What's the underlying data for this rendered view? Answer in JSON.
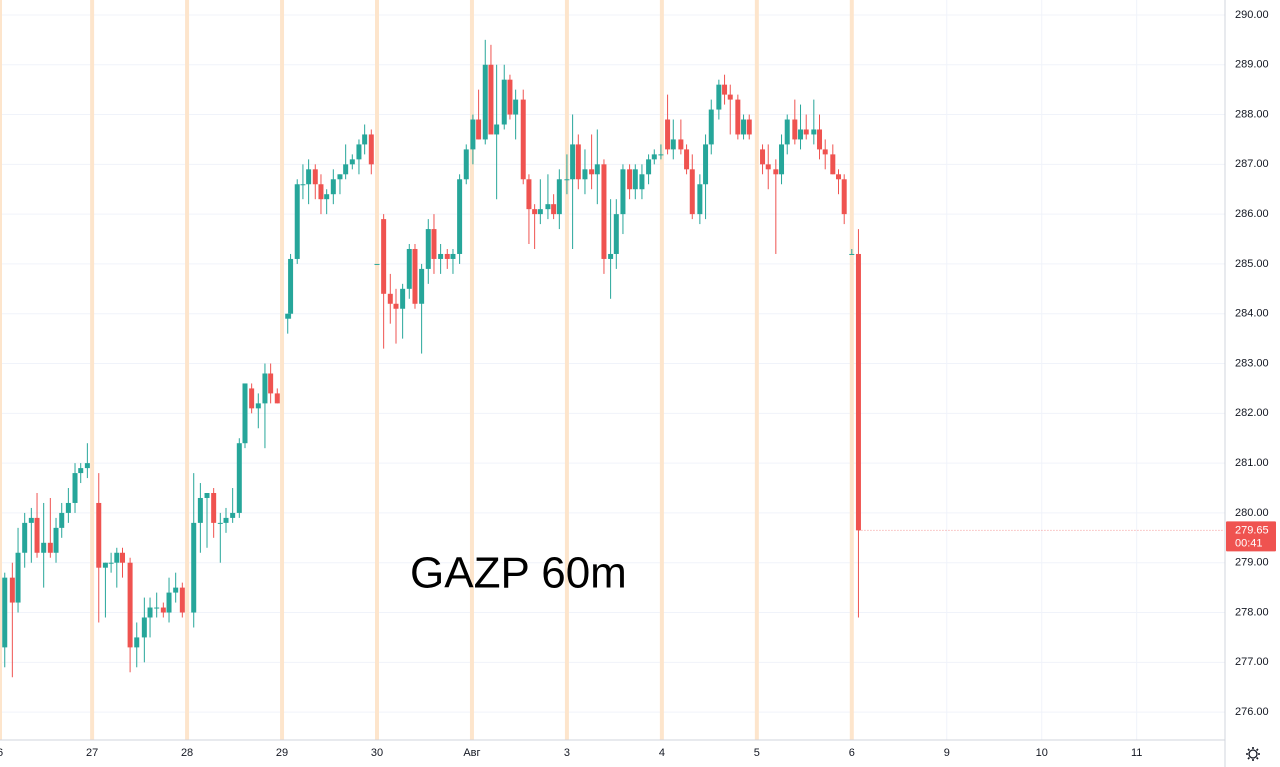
{
  "chart_data": {
    "type": "candlestick",
    "watermark": "GAZP 60m",
    "countdown": "00:41",
    "up_color": "#26a69a",
    "down_color": "#ef5350",
    "xlim": [
      0,
      12.9
    ],
    "xticks": [
      {
        "value": 0,
        "label": "6"
      },
      {
        "value": 0.97,
        "label": "27"
      },
      {
        "value": 1.97,
        "label": "28"
      },
      {
        "value": 2.97,
        "label": "29"
      },
      {
        "value": 3.97,
        "label": "30"
      },
      {
        "value": 4.97,
        "label": "Авг"
      },
      {
        "value": 5.97,
        "label": "3"
      },
      {
        "value": 6.97,
        "label": "4"
      },
      {
        "value": 7.97,
        "label": "5"
      },
      {
        "value": 8.97,
        "label": "6"
      },
      {
        "value": 9.97,
        "label": "9"
      },
      {
        "value": 10.97,
        "label": "10"
      },
      {
        "value": 11.97,
        "label": "11"
      }
    ],
    "ylim": [
      275.44,
      290.3
    ],
    "yticks": [
      {
        "value": 276,
        "label": "276.00"
      },
      {
        "value": 277,
        "label": "277.00"
      },
      {
        "value": 278,
        "label": "278.00"
      },
      {
        "value": 279,
        "label": "279.00"
      },
      {
        "value": 280,
        "label": "280.00"
      },
      {
        "value": 281,
        "label": "281.00"
      },
      {
        "value": 282,
        "label": "282.00"
      },
      {
        "value": 283,
        "label": "283.00"
      },
      {
        "value": 284,
        "label": "284.00"
      },
      {
        "value": 285,
        "label": "285.00"
      },
      {
        "value": 286,
        "label": "286.00"
      },
      {
        "value": 287,
        "label": "287.00"
      },
      {
        "value": 288,
        "label": "288.00"
      },
      {
        "value": 289,
        "label": "289.00"
      },
      {
        "value": 290,
        "label": "290.00"
      }
    ],
    "grid": true,
    "x": [
      0.05,
      0.13,
      0.19,
      0.26,
      0.33,
      0.39,
      0.46,
      0.53,
      0.59,
      0.65,
      0.72,
      0.79,
      0.85,
      0.92,
      1.04,
      1.11,
      1.17,
      1.23,
      1.29,
      1.37,
      1.44,
      1.52,
      1.58,
      1.65,
      1.72,
      1.78,
      1.85,
      1.92,
      2.04,
      2.11,
      2.18,
      2.25,
      2.32,
      2.38,
      2.45,
      2.52,
      2.58,
      2.65,
      2.72,
      2.79,
      2.85,
      2.92,
      3.03,
      3.06,
      3.13,
      3.19,
      3.25,
      3.32,
      3.38,
      3.44,
      3.51,
      3.58,
      3.64,
      3.71,
      3.78,
      3.84,
      3.91,
      3.97,
      4.04,
      4.11,
      4.17,
      4.24,
      4.31,
      4.37,
      4.44,
      4.51,
      4.57,
      4.64,
      4.71,
      4.77,
      4.84,
      4.91,
      4.98,
      5.04,
      5.11,
      5.17,
      5.23,
      5.31,
      5.37,
      5.43,
      5.51,
      5.57,
      5.63,
      5.69,
      5.77,
      5.83,
      5.89,
      5.97,
      6.03,
      6.09,
      6.16,
      6.23,
      6.29,
      6.36,
      6.43,
      6.49,
      6.56,
      6.63,
      6.69,
      6.76,
      6.83,
      6.89,
      6.96,
      7.03,
      7.09,
      7.17,
      7.23,
      7.29,
      7.37,
      7.43,
      7.49,
      7.57,
      7.63,
      7.69,
      7.77,
      7.83,
      7.89,
      8.03,
      8.09,
      8.17,
      8.23,
      8.29,
      8.37,
      8.43,
      8.49,
      8.57,
      8.63,
      8.69,
      8.77,
      8.83,
      8.89,
      8.97,
      9.04
    ],
    "open": [
      277.3,
      278.7,
      278.2,
      279.2,
      279.8,
      279.9,
      279.2,
      279.4,
      279.2,
      279.7,
      280.0,
      280.2,
      280.8,
      280.9,
      280.2,
      278.9,
      279.0,
      279.0,
      279.2,
      279.0,
      277.3,
      277.5,
      277.9,
      278.1,
      278.1,
      278.0,
      278.4,
      278.5,
      278.0,
      279.8,
      280.3,
      280.4,
      279.8,
      279.8,
      279.9,
      280.0,
      281.4,
      282.5,
      282.1,
      282.2,
      282.8,
      282.4,
      283.9,
      284.0,
      285.1,
      286.6,
      286.6,
      286.9,
      286.6,
      286.3,
      286.4,
      286.7,
      286.8,
      287.0,
      287.1,
      287.4,
      287.6,
      285.0,
      285.9,
      284.4,
      284.2,
      284.1,
      284.5,
      285.3,
      284.2,
      284.9,
      285.7,
      285.1,
      285.2,
      285.1,
      285.2,
      286.7,
      287.3,
      287.9,
      287.5,
      289.0,
      287.6,
      287.8,
      288.7,
      288.0,
      288.3,
      286.7,
      286.1,
      286.0,
      286.1,
      286.2,
      286.0,
      286.7,
      286.7,
      287.4,
      286.7,
      286.9,
      286.8,
      287.0,
      285.1,
      285.2,
      286.0,
      286.9,
      286.5,
      286.5,
      286.8,
      287.1,
      287.2,
      287.9,
      287.3,
      287.5,
      287.3,
      286.9,
      286.0,
      286.6,
      287.4,
      288.1,
      288.6,
      288.4,
      288.3,
      287.6,
      287.9,
      287.3,
      287.0,
      286.9,
      286.8,
      287.4,
      287.9,
      287.5,
      287.7,
      287.6,
      287.7,
      287.3,
      287.2,
      286.8,
      286.7,
      285.2,
      285.2
    ],
    "high": [
      278.8,
      279.0,
      279.7,
      280.0,
      280.1,
      280.4,
      280.2,
      280.3,
      279.9,
      280.2,
      280.5,
      281.0,
      281.0,
      281.4,
      280.8,
      279.0,
      279.2,
      279.3,
      279.3,
      279.1,
      277.8,
      278.3,
      278.3,
      278.4,
      278.2,
      278.7,
      278.8,
      278.6,
      280.8,
      280.6,
      280.4,
      280.5,
      280.0,
      280.1,
      280.5,
      281.5,
      282.6,
      282.6,
      282.4,
      283.0,
      283.0,
      282.5,
      284.0,
      285.2,
      286.7,
      287.0,
      287.1,
      287.0,
      286.8,
      286.5,
      286.9,
      286.8,
      287.4,
      287.2,
      287.5,
      287.8,
      287.7,
      285.0,
      286.0,
      284.8,
      284.5,
      284.6,
      285.4,
      285.4,
      285.0,
      285.9,
      286.0,
      285.4,
      285.3,
      285.3,
      286.8,
      287.4,
      288.0,
      288.5,
      289.5,
      289.4,
      289.0,
      289.0,
      288.8,
      288.5,
      288.5,
      286.8,
      286.2,
      286.7,
      286.8,
      286.4,
      286.9,
      287.2,
      288.0,
      287.6,
      287.3,
      287.6,
      287.7,
      287.1,
      286.3,
      286.3,
      287.0,
      287.0,
      287.0,
      287.0,
      287.2,
      287.3,
      287.4,
      288.4,
      287.9,
      287.9,
      287.4,
      287.2,
      286.8,
      287.6,
      288.3,
      288.7,
      288.8,
      288.6,
      288.4,
      288.0,
      288.0,
      287.4,
      287.4,
      287.1,
      287.6,
      288.0,
      288.3,
      288.2,
      288.0,
      288.3,
      288.0,
      287.5,
      287.4,
      286.9,
      286.8,
      285.3,
      285.7
    ],
    "low": [
      276.9,
      276.7,
      278.0,
      278.9,
      279.0,
      279.1,
      278.5,
      279.1,
      279.0,
      279.5,
      279.8,
      280.0,
      280.6,
      280.7,
      277.8,
      277.9,
      278.8,
      278.5,
      278.7,
      276.8,
      276.9,
      277.0,
      277.5,
      277.9,
      277.9,
      277.8,
      278.2,
      277.9,
      277.7,
      279.2,
      279.3,
      279.5,
      279.0,
      279.6,
      279.8,
      279.9,
      281.3,
      282.0,
      281.7,
      281.3,
      282.2,
      282.2,
      283.6,
      283.9,
      285.0,
      286.3,
      286.2,
      286.3,
      286.0,
      286.0,
      286.2,
      286.4,
      286.7,
      286.9,
      286.8,
      287.2,
      286.8,
      285.0,
      283.3,
      283.8,
      283.4,
      283.5,
      284.3,
      284.1,
      283.2,
      284.6,
      284.8,
      284.8,
      284.9,
      284.8,
      285.0,
      286.6,
      287.0,
      287.5,
      287.4,
      287.7,
      286.3,
      287.7,
      287.9,
      287.5,
      286.6,
      285.4,
      285.3,
      285.8,
      285.9,
      285.9,
      285.7,
      286.4,
      285.3,
      286.5,
      286.4,
      286.5,
      286.2,
      284.8,
      284.3,
      284.9,
      285.6,
      286.3,
      286.3,
      286.3,
      286.6,
      287.0,
      287.1,
      287.2,
      287.1,
      287.2,
      286.8,
      285.9,
      285.8,
      285.9,
      287.2,
      287.9,
      288.2,
      287.6,
      287.5,
      287.5,
      287.5,
      286.8,
      286.5,
      285.2,
      286.6,
      287.2,
      287.4,
      287.3,
      287.5,
      287.4,
      287.1,
      286.9,
      286.8,
      286.4,
      285.8,
      285.2,
      277.9
    ],
    "close": [
      278.7,
      278.2,
      279.2,
      279.8,
      279.9,
      279.2,
      279.4,
      279.2,
      279.7,
      280.0,
      280.2,
      280.8,
      280.9,
      281.0,
      278.9,
      279.0,
      279.0,
      279.2,
      279.0,
      277.3,
      277.5,
      277.9,
      278.1,
      278.1,
      278.0,
      278.4,
      278.5,
      278.0,
      279.8,
      280.3,
      280.4,
      279.8,
      279.8,
      279.9,
      280.0,
      281.4,
      282.6,
      282.1,
      282.2,
      282.8,
      282.4,
      282.2,
      284.0,
      285.1,
      286.6,
      286.6,
      286.9,
      286.6,
      286.3,
      286.4,
      286.7,
      286.8,
      287.0,
      287.1,
      287.4,
      287.6,
      287.0,
      285.0,
      284.4,
      284.2,
      284.1,
      284.5,
      285.3,
      284.2,
      284.9,
      285.7,
      285.1,
      285.2,
      285.1,
      285.2,
      286.7,
      287.3,
      287.9,
      287.5,
      289.0,
      287.6,
      287.8,
      288.7,
      288.0,
      288.3,
      286.7,
      286.1,
      286.0,
      286.1,
      286.2,
      286.0,
      286.7,
      286.7,
      287.4,
      286.7,
      286.9,
      286.8,
      287.0,
      285.1,
      285.2,
      286.0,
      286.9,
      286.5,
      286.9,
      286.8,
      287.1,
      287.2,
      287.2,
      287.3,
      287.5,
      287.3,
      286.9,
      286.0,
      286.6,
      287.4,
      288.1,
      288.6,
      288.4,
      288.3,
      287.6,
      287.9,
      287.6,
      287.0,
      286.9,
      286.8,
      287.4,
      287.9,
      287.5,
      287.7,
      287.6,
      287.7,
      287.3,
      287.2,
      286.8,
      286.7,
      286.0,
      285.2,
      279.65
    ]
  }
}
